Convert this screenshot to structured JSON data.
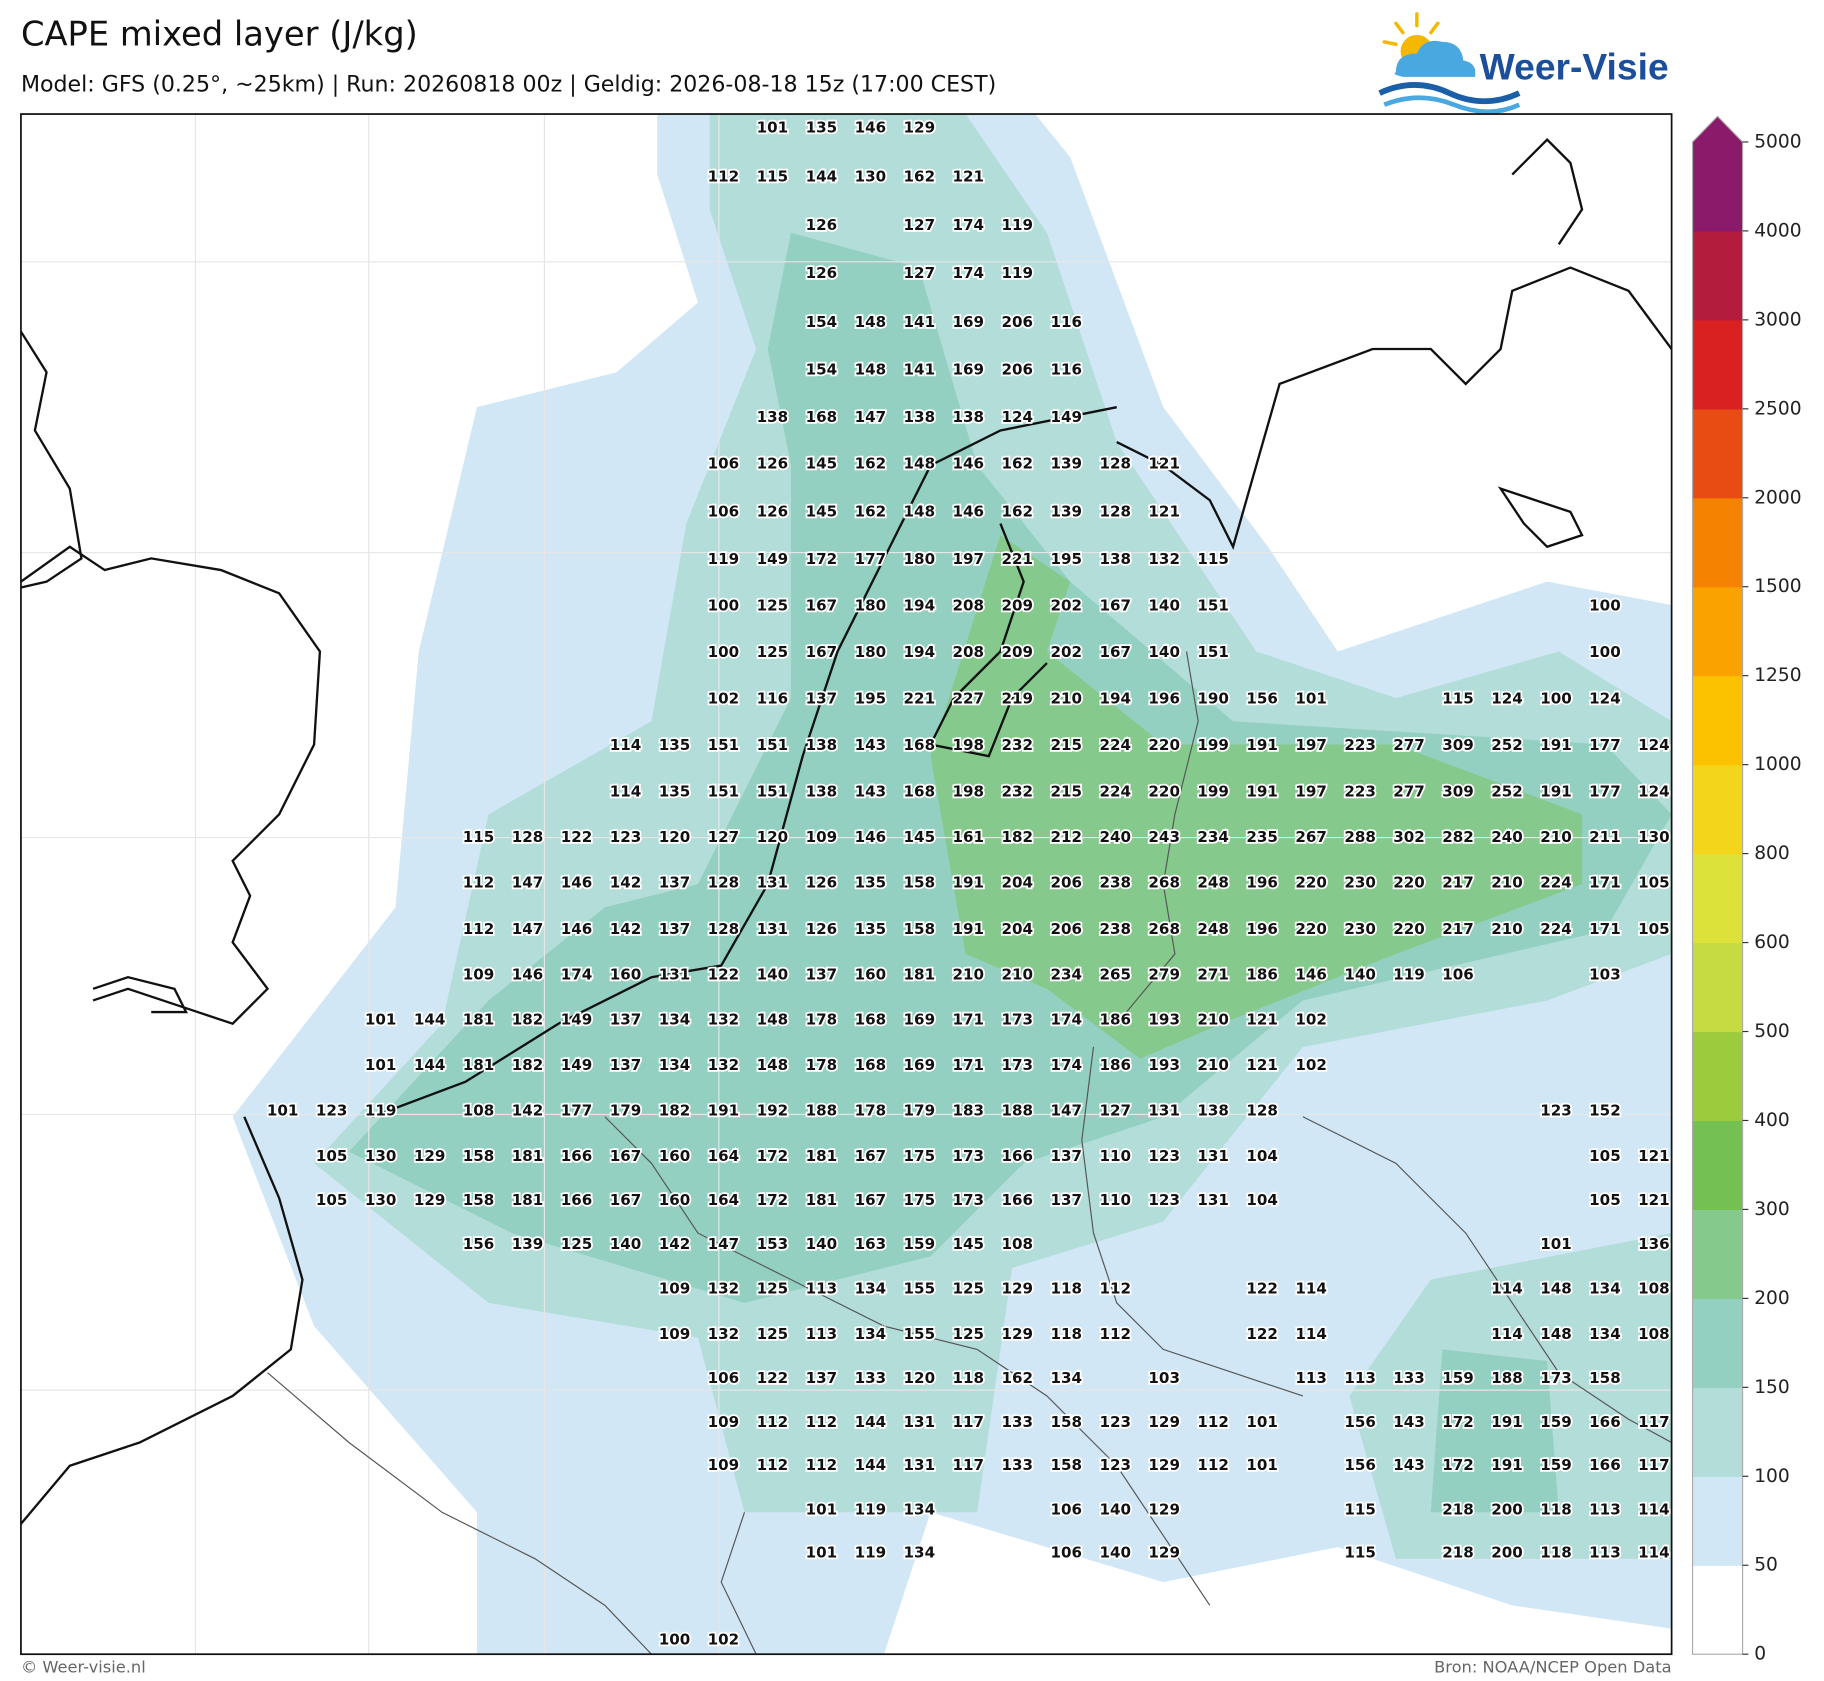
{
  "header": {
    "title": "CAPE mixed layer (J/kg)",
    "subtitle": "Model: GFS (0.25°, ~25km)  |  Run: 20260818 00z  |  Geldig: 2026-08-18 15z (17:00 CEST)",
    "logo": "Weer-Visie"
  },
  "map": {
    "grid_values": [
      [
        null,
        null,
        null,
        null,
        null,
        null,
        null,
        null,
        null,
        null,
        101,
        135,
        146,
        129,
        null,
        null,
        null,
        null,
        null,
        null,
        null,
        null,
        null,
        null,
        null,
        null,
        null,
        null,
        null
      ],
      [
        null,
        null,
        null,
        null,
        null,
        null,
        null,
        null,
        null,
        112,
        115,
        144,
        130,
        162,
        121,
        null,
        null,
        null,
        null,
        null,
        null,
        null,
        null,
        null,
        null,
        null,
        null,
        null,
        null
      ],
      [
        null,
        null,
        null,
        null,
        null,
        null,
        null,
        null,
        null,
        null,
        null,
        126,
        null,
        127,
        174,
        119,
        null,
        null,
        null,
        null,
        null,
        null,
        null,
        null,
        null,
        null,
        null,
        null,
        null
      ],
      [
        null,
        null,
        null,
        null,
        null,
        null,
        null,
        null,
        null,
        null,
        null,
        126,
        null,
        127,
        174,
        119,
        null,
        null,
        null,
        null,
        null,
        null,
        null,
        null,
        null,
        null,
        null,
        null,
        null
      ],
      [
        null,
        null,
        null,
        null,
        null,
        null,
        null,
        null,
        null,
        null,
        null,
        154,
        148,
        141,
        169,
        206,
        116,
        null,
        null,
        null,
        null,
        null,
        null,
        null,
        null,
        null,
        null,
        null,
        null
      ],
      [
        null,
        null,
        null,
        null,
        null,
        null,
        null,
        null,
        null,
        null,
        null,
        154,
        148,
        141,
        169,
        206,
        116,
        null,
        null,
        null,
        null,
        null,
        null,
        null,
        null,
        null,
        null,
        null,
        null
      ],
      [
        null,
        null,
        null,
        null,
        null,
        null,
        null,
        null,
        null,
        null,
        138,
        168,
        147,
        138,
        138,
        124,
        149,
        null,
        null,
        null,
        null,
        null,
        null,
        null,
        null,
        null,
        null,
        null,
        null
      ],
      [
        null,
        null,
        null,
        null,
        null,
        null,
        null,
        null,
        null,
        106,
        126,
        145,
        162,
        148,
        146,
        162,
        139,
        128,
        121,
        null,
        null,
        null,
        null,
        null,
        null,
        null,
        null,
        null,
        null
      ],
      [
        null,
        null,
        null,
        null,
        null,
        null,
        null,
        null,
        null,
        106,
        126,
        145,
        162,
        148,
        146,
        162,
        139,
        128,
        121,
        null,
        null,
        null,
        null,
        null,
        null,
        null,
        null,
        null,
        null
      ],
      [
        null,
        null,
        null,
        null,
        null,
        null,
        null,
        null,
        null,
        119,
        149,
        172,
        177,
        180,
        197,
        221,
        195,
        138,
        132,
        115,
        null,
        null,
        null,
        null,
        null,
        null,
        null,
        null,
        null
      ],
      [
        null,
        null,
        null,
        null,
        null,
        null,
        null,
        null,
        null,
        100,
        125,
        167,
        180,
        194,
        208,
        209,
        202,
        167,
        140,
        151,
        null,
        null,
        null,
        null,
        null,
        null,
        null,
        100,
        null
      ],
      [
        null,
        null,
        null,
        null,
        null,
        null,
        null,
        null,
        null,
        100,
        125,
        167,
        180,
        194,
        208,
        209,
        202,
        167,
        140,
        151,
        null,
        null,
        null,
        null,
        null,
        null,
        null,
        100,
        null
      ],
      [
        null,
        null,
        null,
        null,
        null,
        null,
        null,
        null,
        null,
        102,
        116,
        137,
        195,
        221,
        227,
        219,
        210,
        194,
        196,
        190,
        156,
        101,
        null,
        null,
        115,
        124,
        100,
        124,
        null
      ],
      [
        null,
        null,
        null,
        null,
        null,
        null,
        null,
        114,
        135,
        151,
        151,
        138,
        143,
        168,
        198,
        232,
        215,
        224,
        220,
        199,
        191,
        197,
        223,
        277,
        309,
        252,
        191,
        177,
        124
      ],
      [
        null,
        null,
        null,
        null,
        null,
        null,
        null,
        114,
        135,
        151,
        151,
        138,
        143,
        168,
        198,
        232,
        215,
        224,
        220,
        199,
        191,
        197,
        223,
        277,
        309,
        252,
        191,
        177,
        124
      ],
      [
        null,
        null,
        null,
        null,
        115,
        128,
        122,
        123,
        120,
        127,
        120,
        109,
        146,
        145,
        161,
        182,
        212,
        240,
        243,
        234,
        235,
        267,
        288,
        302,
        282,
        240,
        210,
        211,
        130
      ],
      [
        null,
        null,
        null,
        null,
        112,
        147,
        146,
        142,
        137,
        128,
        131,
        126,
        135,
        158,
        191,
        204,
        206,
        238,
        268,
        248,
        196,
        220,
        230,
        220,
        217,
        210,
        224,
        171,
        105
      ],
      [
        null,
        null,
        null,
        null,
        112,
        147,
        146,
        142,
        137,
        128,
        131,
        126,
        135,
        158,
        191,
        204,
        206,
        238,
        268,
        248,
        196,
        220,
        230,
        220,
        217,
        210,
        224,
        171,
        105
      ],
      [
        null,
        null,
        null,
        null,
        109,
        146,
        174,
        160,
        131,
        122,
        140,
        137,
        160,
        181,
        210,
        210,
        234,
        265,
        279,
        271,
        186,
        146,
        140,
        119,
        106,
        null,
        null,
        103,
        null
      ],
      [
        null,
        null,
        101,
        144,
        181,
        182,
        149,
        137,
        134,
        132,
        148,
        178,
        168,
        169,
        171,
        173,
        174,
        186,
        193,
        210,
        121,
        102,
        null,
        null,
        null,
        null,
        null,
        null,
        null
      ],
      [
        null,
        null,
        101,
        144,
        181,
        182,
        149,
        137,
        134,
        132,
        148,
        178,
        168,
        169,
        171,
        173,
        174,
        186,
        193,
        210,
        121,
        102,
        null,
        null,
        null,
        null,
        null,
        null,
        null
      ],
      [
        101,
        123,
        119,
        null,
        108,
        142,
        177,
        179,
        182,
        191,
        192,
        188,
        178,
        179,
        183,
        188,
        147,
        127,
        131,
        138,
        128,
        null,
        null,
        null,
        null,
        null,
        123,
        152,
        null
      ],
      [
        null,
        105,
        130,
        129,
        158,
        181,
        166,
        167,
        160,
        164,
        172,
        181,
        167,
        175,
        173,
        166,
        137,
        110,
        123,
        131,
        104,
        null,
        null,
        null,
        null,
        null,
        null,
        105,
        121
      ],
      [
        null,
        105,
        130,
        129,
        158,
        181,
        166,
        167,
        160,
        164,
        172,
        181,
        167,
        175,
        173,
        166,
        137,
        110,
        123,
        131,
        104,
        null,
        null,
        null,
        null,
        null,
        null,
        105,
        121
      ],
      [
        null,
        null,
        null,
        null,
        156,
        139,
        125,
        140,
        142,
        147,
        153,
        140,
        163,
        159,
        145,
        108,
        null,
        null,
        null,
        null,
        null,
        null,
        null,
        null,
        null,
        null,
        101,
        null,
        136
      ],
      [
        null,
        null,
        null,
        null,
        null,
        null,
        null,
        null,
        109,
        132,
        125,
        113,
        134,
        155,
        125,
        129,
        118,
        112,
        null,
        null,
        122,
        114,
        null,
        null,
        null,
        114,
        148,
        134,
        108
      ],
      [
        null,
        null,
        null,
        null,
        null,
        null,
        null,
        null,
        109,
        132,
        125,
        113,
        134,
        155,
        125,
        129,
        118,
        112,
        null,
        null,
        122,
        114,
        null,
        null,
        null,
        114,
        148,
        134,
        108
      ],
      [
        null,
        null,
        null,
        null,
        null,
        null,
        null,
        null,
        null,
        106,
        122,
        137,
        133,
        120,
        118,
        162,
        134,
        null,
        103,
        null,
        null,
        113,
        113,
        133,
        159,
        188,
        173,
        158,
        null
      ],
      [
        null,
        null,
        null,
        null,
        null,
        null,
        null,
        null,
        null,
        109,
        112,
        112,
        144,
        131,
        117,
        133,
        158,
        123,
        129,
        112,
        101,
        null,
        156,
        143,
        172,
        191,
        159,
        166,
        117
      ],
      [
        null,
        null,
        null,
        null,
        null,
        null,
        null,
        null,
        null,
        109,
        112,
        112,
        144,
        131,
        117,
        133,
        158,
        123,
        129,
        112,
        101,
        null,
        156,
        143,
        172,
        191,
        159,
        166,
        117
      ],
      [
        null,
        null,
        null,
        null,
        null,
        null,
        null,
        null,
        null,
        null,
        null,
        101,
        119,
        134,
        null,
        null,
        106,
        140,
        129,
        null,
        null,
        null,
        115,
        null,
        218,
        200,
        118,
        113,
        114
      ],
      [
        null,
        null,
        null,
        null,
        null,
        null,
        null,
        null,
        null,
        null,
        null,
        101,
        119,
        134,
        null,
        null,
        106,
        140,
        129,
        null,
        null,
        null,
        115,
        null,
        218,
        200,
        118,
        113,
        114
      ],
      [
        null,
        null,
        null,
        null,
        null,
        null,
        null,
        null,
        100,
        102,
        null,
        null,
        null,
        null,
        null,
        null,
        null,
        null,
        null,
        null,
        null,
        null,
        null,
        null,
        null,
        null,
        null,
        null,
        null
      ]
    ]
  },
  "colorbar": {
    "levels": [
      0,
      50,
      100,
      150,
      200,
      300,
      400,
      500,
      600,
      800,
      1000,
      1250,
      1500,
      2000,
      2500,
      3000,
      4000,
      5000
    ],
    "colors": [
      "#ffffff",
      "#d1e7f6",
      "#b3ddd9",
      "#93d0c1",
      "#85ca8c",
      "#74c052",
      "#9ccb3d",
      "#c6db42",
      "#dde23a",
      "#f3d51c",
      "#fcc200",
      "#faa300",
      "#f58200",
      "#e84c12",
      "#da2121",
      "#b41c3d",
      "#8b1a6b"
    ]
  },
  "footer": {
    "copyright": "© Weer-visie.nl",
    "source": "Bron: NOAA/NCEP Open Data"
  }
}
